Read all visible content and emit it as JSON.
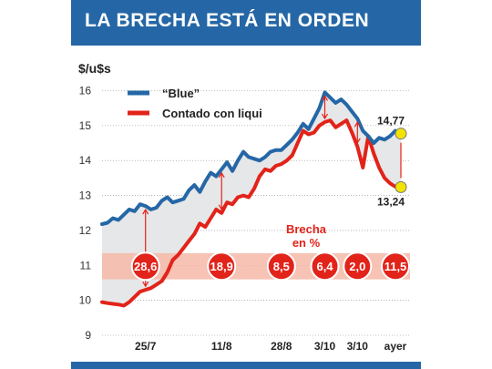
{
  "header": {
    "title": "LA BRECHA ESTÁ EN ORDEN"
  },
  "chart_data": {
    "type": "line",
    "title": "LA BRECHA ESTÁ EN ORDEN",
    "ylabel": "$/u$s",
    "xlabel": "",
    "ylim": [
      9,
      16.3
    ],
    "yticks": [
      9,
      10,
      11,
      12,
      13,
      14,
      15,
      16
    ],
    "grid": true,
    "legend_position": "top-left",
    "x_tick_labels": [
      "25/7",
      "11/8",
      "28/8",
      "3/10",
      "3/10",
      "ayer"
    ],
    "series": [
      {
        "name": "“Blue”",
        "color": "#2567a6",
        "values": [
          12.18,
          12.22,
          12.35,
          12.3,
          12.45,
          12.6,
          12.55,
          12.75,
          12.7,
          12.6,
          12.65,
          12.85,
          12.95,
          12.8,
          12.85,
          12.9,
          13.15,
          13.3,
          13.1,
          13.4,
          13.65,
          13.55,
          13.75,
          13.95,
          13.7,
          14.0,
          14.25,
          14.1,
          14.05,
          14.0,
          14.1,
          14.25,
          14.3,
          14.3,
          14.45,
          14.6,
          14.8,
          15.05,
          14.9,
          15.2,
          15.5,
          15.95,
          15.8,
          15.65,
          15.75,
          15.6,
          15.4,
          15.2,
          14.85,
          14.7,
          14.5,
          14.65,
          14.6,
          14.7,
          14.85,
          14.77
        ]
      },
      {
        "name": "Contado con liqui",
        "color": "#e2231a",
        "values": [
          9.95,
          9.92,
          9.9,
          9.88,
          9.85,
          9.95,
          10.1,
          10.25,
          10.3,
          10.35,
          10.45,
          10.55,
          10.8,
          11.15,
          11.3,
          11.5,
          11.7,
          11.9,
          12.2,
          12.1,
          12.35,
          12.6,
          12.5,
          12.8,
          12.75,
          12.95,
          13.0,
          12.95,
          13.2,
          13.55,
          13.75,
          13.7,
          13.85,
          13.9,
          14.0,
          14.15,
          14.5,
          14.85,
          14.75,
          14.8,
          15.0,
          15.1,
          15.15,
          14.95,
          15.05,
          15.15,
          14.8,
          14.4,
          13.8,
          14.7,
          14.2,
          13.8,
          13.5,
          13.35,
          13.25,
          13.24
        ]
      }
    ],
    "end_labels": {
      "blue": "14,77",
      "liqui": "13,24"
    },
    "brecha": {
      "label_line1": "Brecha",
      "label_line2": "en %",
      "band_range": [
        10.6,
        11.35
      ],
      "values": [
        "28,6",
        "18,9",
        "8,5",
        "6,4",
        "2,0",
        "11,5"
      ]
    },
    "colors": {
      "blue_line": "#2567a6",
      "red_line": "#e2231a",
      "gap_fill": "#e6e7e8",
      "band": "#f4b9a8",
      "grid": "#888888",
      "end_marker": "#f2e400"
    }
  }
}
